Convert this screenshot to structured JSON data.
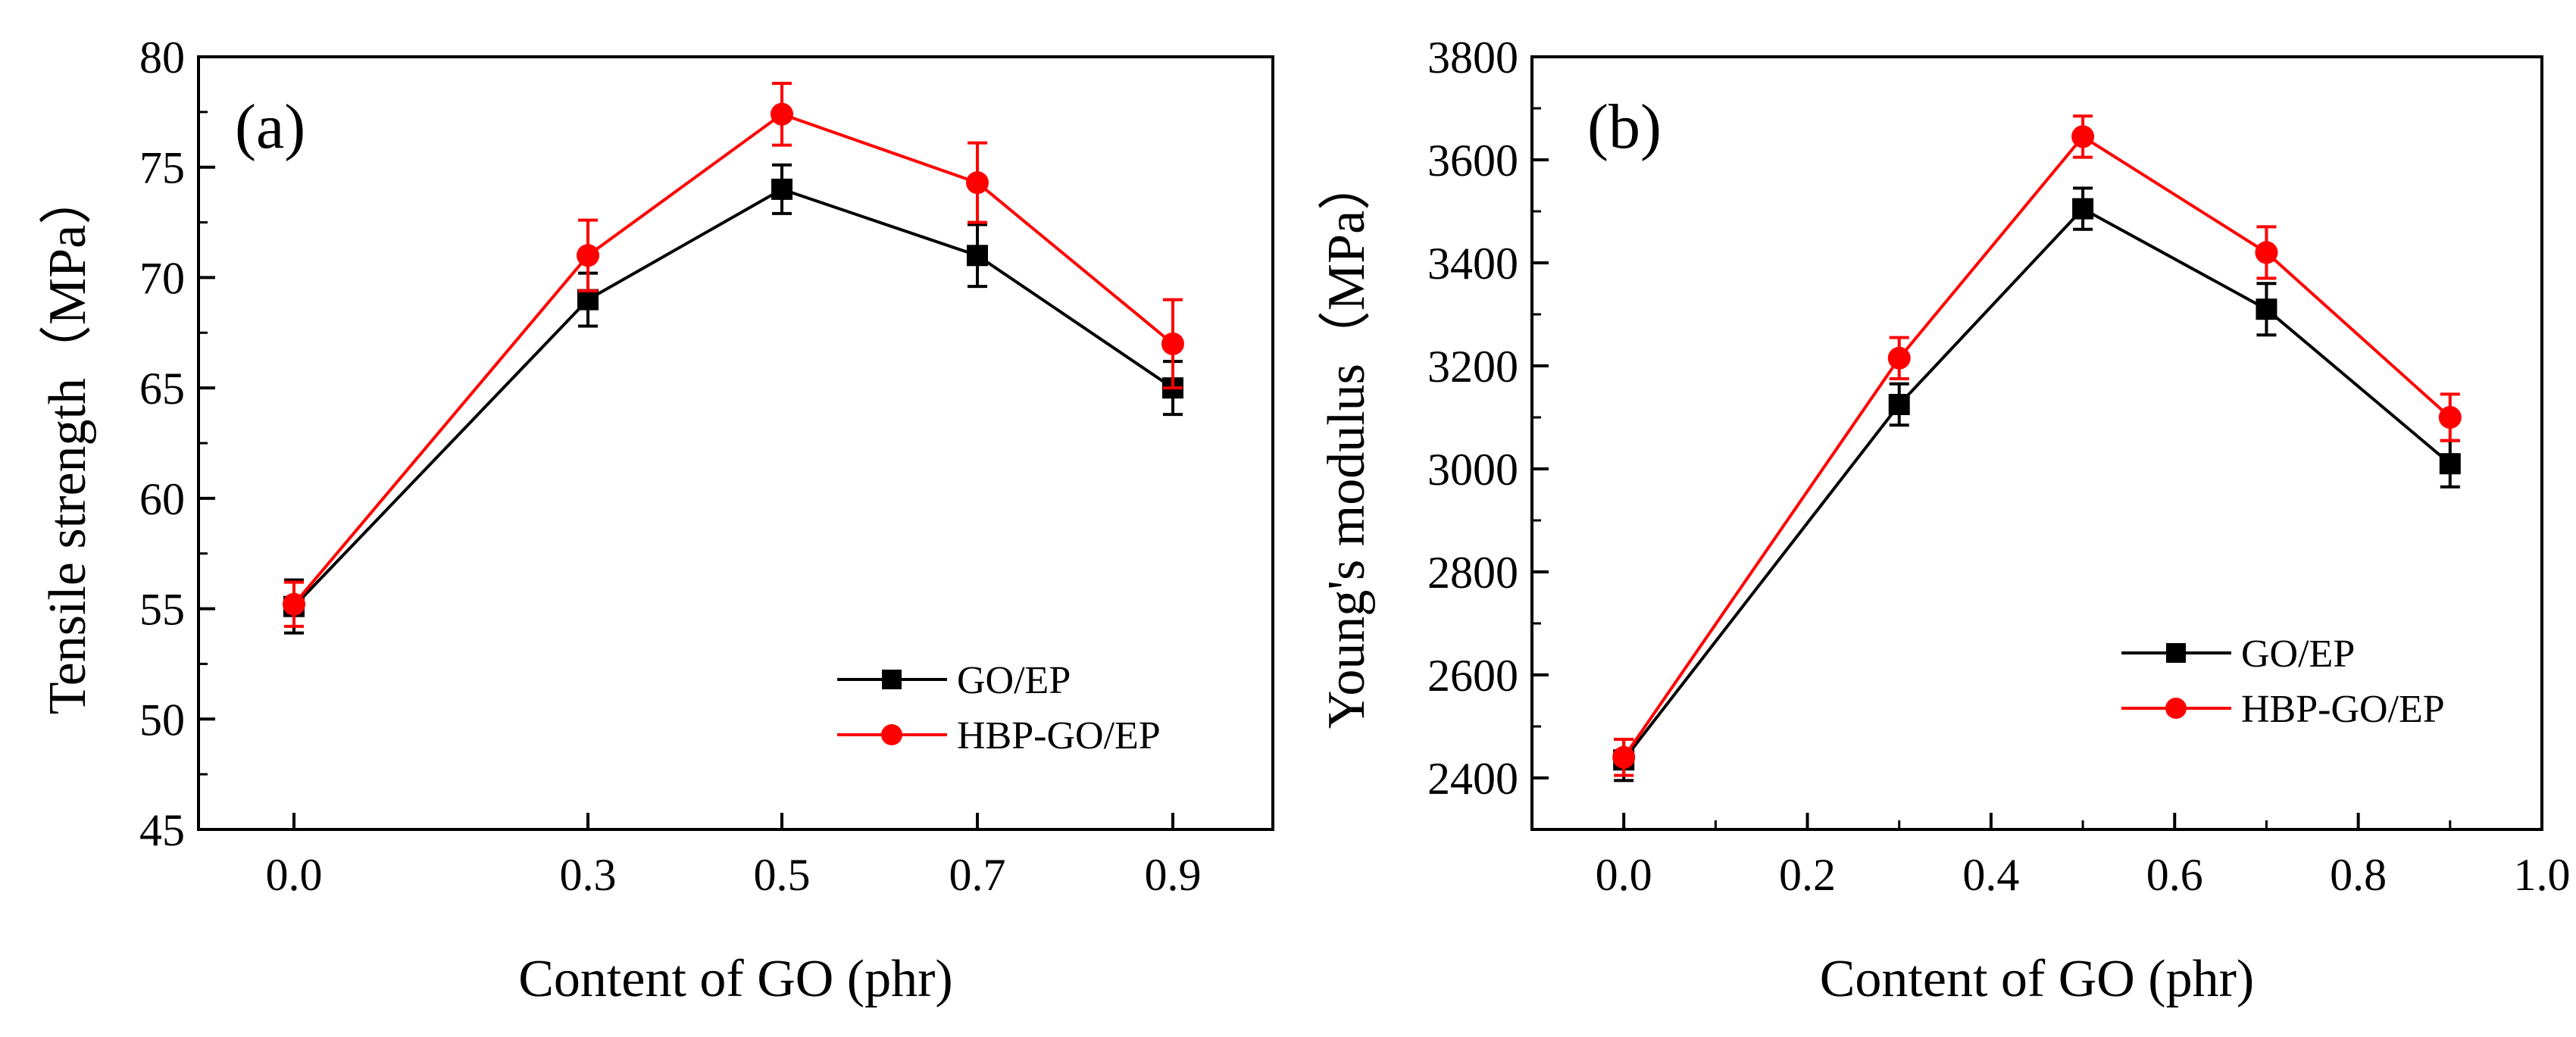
{
  "figure": {
    "background": "#ffffff"
  },
  "chart_data": [
    {
      "type": "line",
      "panel_label": "(a)",
      "xlabel": "Content of GO (phr)",
      "ylabel": "Tensile strength（MPa）",
      "x_axis_scale": "categorical",
      "x_tick_labels": [
        "0.0",
        "0.3",
        "0.5",
        "0.7",
        "0.9"
      ],
      "x": [
        0.0,
        0.3,
        0.5,
        0.7,
        0.9
      ],
      "ylim": [
        45,
        80
      ],
      "yticks": [
        45,
        50,
        55,
        60,
        65,
        70,
        75,
        80
      ],
      "grid": false,
      "legend_position": "lower-right",
      "series": [
        {
          "name": "GO/EP",
          "color": "#000000",
          "marker": "square",
          "values": [
            55.1,
            69.0,
            74.0,
            71.0,
            65.0
          ],
          "errors": [
            1.2,
            1.2,
            1.1,
            1.4,
            1.2
          ]
        },
        {
          "name": "HBP-GO/EP",
          "color": "#ff0000",
          "marker": "circle",
          "values": [
            55.2,
            71.0,
            77.4,
            74.3,
            67.0
          ],
          "errors": [
            1.0,
            1.6,
            1.4,
            1.8,
            2.0
          ]
        }
      ]
    },
    {
      "type": "line",
      "panel_label": "(b)",
      "xlabel": "Content of GO (phr)",
      "ylabel": "Young's modulus（MPa）",
      "x_axis_scale": "linear",
      "x": [
        0.0,
        0.3,
        0.5,
        0.7,
        0.9
      ],
      "xlim": [
        -0.1,
        1.0
      ],
      "xticks": [
        0.0,
        0.2,
        0.4,
        0.6,
        0.8,
        1.0
      ],
      "x_tick_labels": [
        "0.0",
        "0.2",
        "0.4",
        "0.6",
        "0.8",
        "1.0"
      ],
      "ylim": [
        2300,
        3800
      ],
      "yticks": [
        2400,
        2600,
        2800,
        3000,
        3200,
        3400,
        3600,
        3800
      ],
      "grid": false,
      "legend_position": "lower-right",
      "series": [
        {
          "name": "GO/EP",
          "color": "#000000",
          "marker": "square",
          "values": [
            2435,
            3125,
            3505,
            3310,
            3010
          ],
          "errors": [
            40,
            40,
            40,
            50,
            45
          ]
        },
        {
          "name": "HBP-GO/EP",
          "color": "#ff0000",
          "marker": "circle",
          "values": [
            2440,
            3215,
            3645,
            3420,
            3100
          ],
          "errors": [
            35,
            40,
            40,
            50,
            45
          ]
        }
      ]
    }
  ]
}
